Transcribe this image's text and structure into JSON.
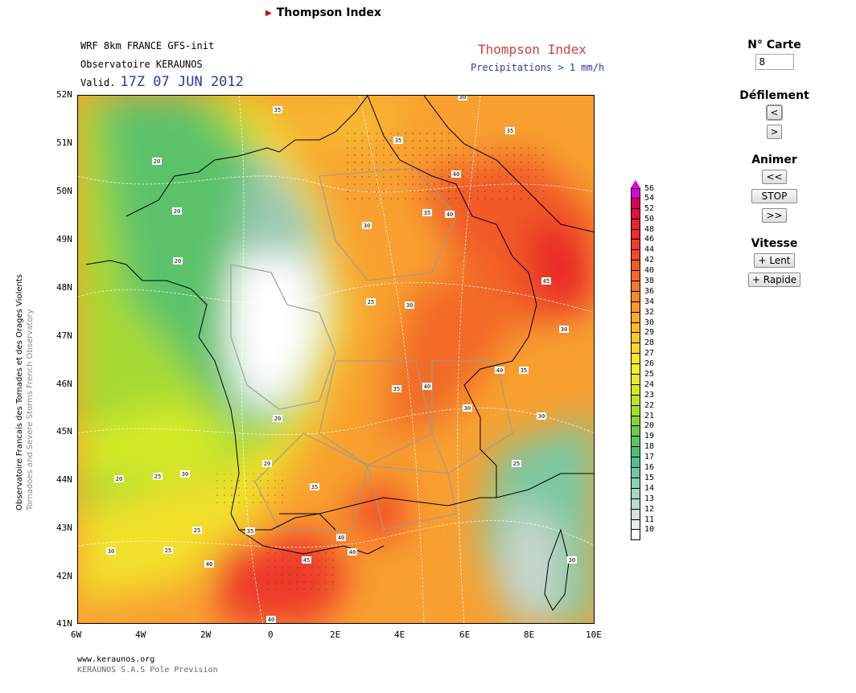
{
  "page": {
    "title": "Thompson Index"
  },
  "map_header": {
    "line1": "WRF 8km FRANCE  GFS-init",
    "line2": "Observatoire KERAUNOS",
    "valid_prefix": "Valid.",
    "valid_date": "17Z 07 JUN 2012",
    "title": "Thompson Index",
    "subtitle": "Precipitations > 1 mm/h"
  },
  "axes": {
    "lat_labels": [
      "52N",
      "51N",
      "50N",
      "49N",
      "48N",
      "47N",
      "46N",
      "45N",
      "44N",
      "43N",
      "42N",
      "41N"
    ],
    "lon_labels": [
      "6W",
      "4W",
      "2W",
      "0",
      "2E",
      "4E",
      "6E",
      "8E",
      "10E"
    ]
  },
  "contour_labels": [
    "35",
    "35",
    "35",
    "30",
    "40",
    "35",
    "40",
    "20",
    "20",
    "20",
    "30",
    "25",
    "30",
    "45",
    "35",
    "40",
    "30",
    "40",
    "30",
    "35",
    "30",
    "25",
    "20",
    "20",
    "20",
    "25",
    "30",
    "35",
    "25",
    "40",
    "40",
    "35",
    "45",
    "30",
    "25",
    "40",
    "40",
    "30"
  ],
  "colorbar": {
    "values": [
      "56",
      "54",
      "52",
      "50",
      "48",
      "46",
      "44",
      "42",
      "40",
      "38",
      "36",
      "34",
      "32",
      "30",
      "29",
      "28",
      "27",
      "26",
      "25",
      "24",
      "23",
      "22",
      "21",
      "20",
      "19",
      "18",
      "17",
      "16",
      "15",
      "14",
      "13",
      "12",
      "11",
      "10"
    ],
    "colors": [
      "#e000e0",
      "#d9005a",
      "#e01040",
      "#e82030",
      "#ee2a2a",
      "#f03a2a",
      "#f24a28",
      "#f45a28",
      "#f66a28",
      "#f87a28",
      "#f98a28",
      "#fa9a28",
      "#fbaa28",
      "#fcba28",
      "#fcc828",
      "#fcd628",
      "#fce428",
      "#f4ee28",
      "#e4ee28",
      "#d4ea28",
      "#bee428",
      "#a4dc30",
      "#88d438",
      "#6cc850",
      "#5cc268",
      "#4ebe7a",
      "#54be8e",
      "#6ec8a4",
      "#8ad2b4",
      "#a4d8c2",
      "#bcdcd0",
      "#d4e2dc",
      "#e8ecea",
      "#ffffff"
    ]
  },
  "controls": {
    "map_number_heading": "N° Carte",
    "map_number_value": "8",
    "scroll_heading": "Défilement",
    "prev_label": "<",
    "next_label": ">",
    "animate_heading": "Animer",
    "rewind_label": "<<",
    "stop_label": "STOP",
    "forward_label": ">>",
    "speed_heading": "Vitesse",
    "slower_label": "+ Lent",
    "faster_label": "+ Rapide"
  },
  "side_credit": {
    "line1": "Observatoire Francais des Tornades et des Orages Violents",
    "line2": "Tornadoes and Severe Storms French Observatory"
  },
  "footer": {
    "url": "www.keraunos.org",
    "company": "KERAUNOS S.A.S Pole Prevision"
  },
  "colors": {
    "accent_blue": "#2b3b9a",
    "title_red": "#d04040"
  }
}
